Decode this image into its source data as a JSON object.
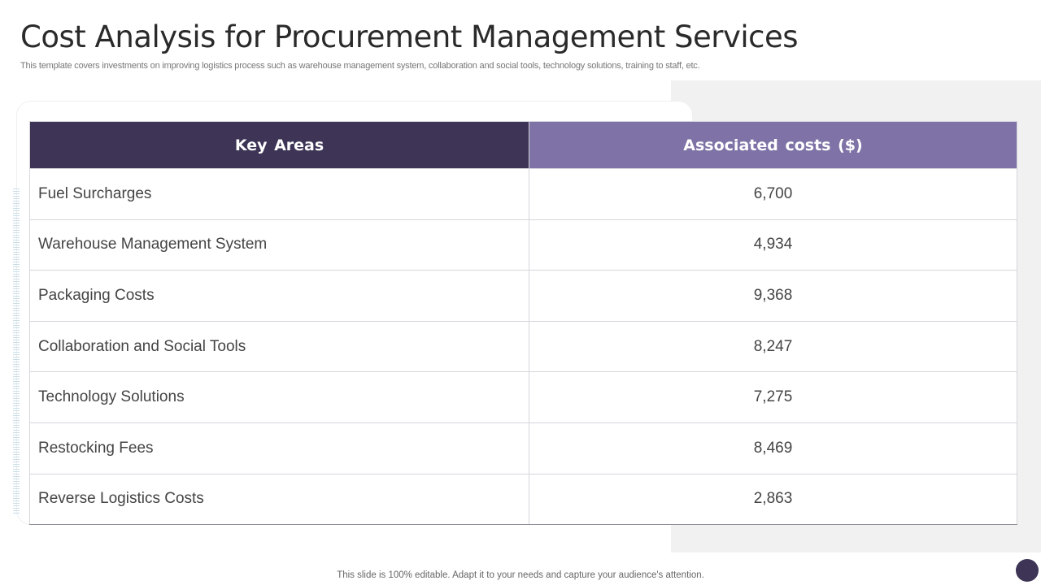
{
  "slide": {
    "title": "Cost Analysis for Procurement Management Services",
    "subtitle": "This template covers investments on improving logistics process such as warehouse management system, collaboration and social tools, technology solutions, training to staff, etc.",
    "footer": "This slide is 100% editable. Adapt it to your needs and capture your audience's attention."
  },
  "table": {
    "headers": [
      "Key Areas",
      "Associated costs ($)"
    ],
    "rows": [
      {
        "area": "Fuel Surcharges",
        "cost": "6,700"
      },
      {
        "area": "Warehouse Management System",
        "cost": "4,934"
      },
      {
        "area": "Packaging Costs",
        "cost": "9,368"
      },
      {
        "area": "Collaboration and Social Tools",
        "cost": "8,247"
      },
      {
        "area": "Technology Solutions",
        "cost": "7,275"
      },
      {
        "area": "Restocking Fees",
        "cost": "8,469"
      },
      {
        "area": "Reverse Logistics Costs",
        "cost": "2,863"
      }
    ]
  },
  "colors": {
    "header_dark": "#3d3456",
    "header_light": "#7f72a6",
    "panel_grey": "#f1f1f1"
  }
}
